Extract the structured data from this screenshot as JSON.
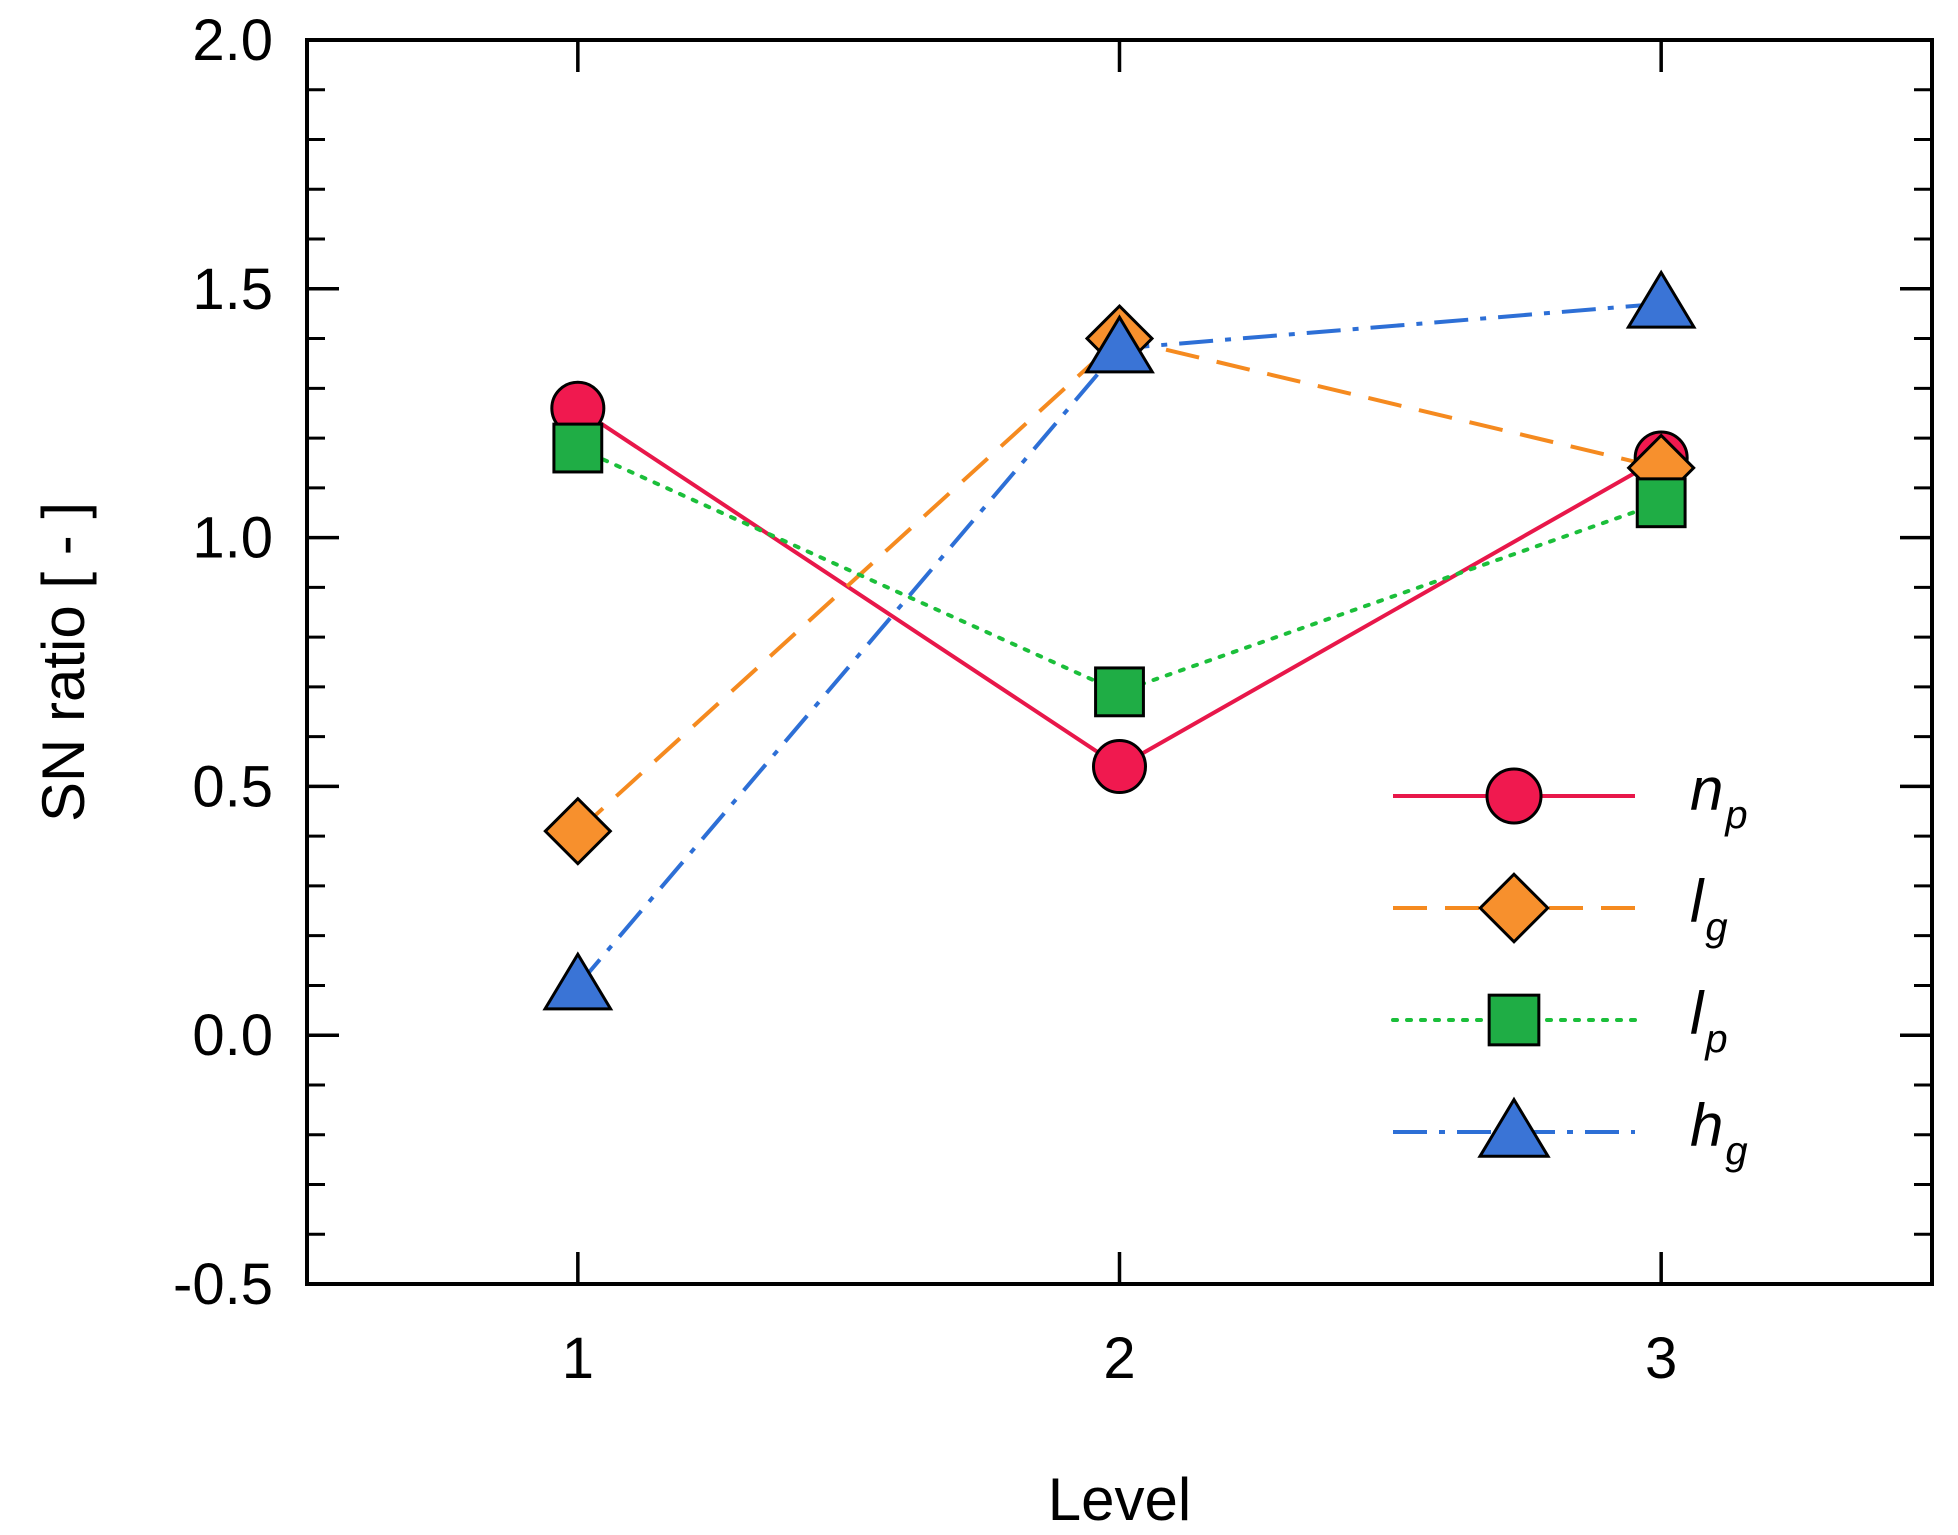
{
  "chart_data": {
    "type": "line",
    "title": "",
    "xlabel": "Level",
    "ylabel": "SN ratio [ - ]",
    "xlim": [
      0.5,
      3.5
    ],
    "ylim": [
      -0.5,
      2.0
    ],
    "xticks": [
      1,
      2,
      3
    ],
    "xtick_labels": [
      "1",
      "2",
      "3"
    ],
    "yticks": [
      -0.5,
      0.0,
      0.5,
      1.0,
      1.5,
      2.0
    ],
    "ytick_labels": [
      "-0.5",
      "0.0",
      "0.5",
      "1.0",
      "1.5",
      "2.0"
    ],
    "y_minor_step": 0.1,
    "grid": false,
    "legend_position": "lower-right",
    "x": [
      1,
      2,
      3
    ],
    "series": [
      {
        "name": "n",
        "subscript": "p",
        "values": [
          1.26,
          0.54,
          1.16
        ],
        "color": "#e8174a",
        "marker": "circle",
        "fill": "#f0194f",
        "dash": "none"
      },
      {
        "name": "l",
        "subscript": "g",
        "values": [
          0.41,
          1.4,
          1.14
        ],
        "color": "#f58a1f",
        "marker": "diamond",
        "fill": "#f7902d",
        "dash": "dashed"
      },
      {
        "name": "l",
        "subscript": "p",
        "values": [
          1.18,
          0.69,
          1.07
        ],
        "color": "#1bbf3a",
        "marker": "square",
        "fill": "#1fad45",
        "dash": "dotted"
      },
      {
        "name": "h",
        "subscript": "g",
        "values": [
          0.1,
          1.38,
          1.47
        ],
        "color": "#2d6fd6",
        "marker": "triangle",
        "fill": "#3a74d6",
        "dash": "dashdot"
      }
    ]
  }
}
